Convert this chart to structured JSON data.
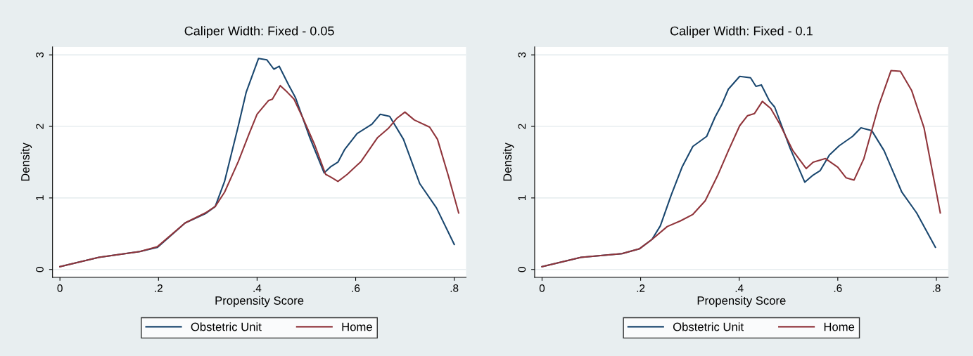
{
  "chart_data": [
    {
      "type": "line",
      "title": "Caliper Width: Fixed - 0.05",
      "xlabel": "Propensity Score",
      "ylabel": "Density",
      "xlim": [
        -0.015,
        0.824
      ],
      "ylim": [
        -0.11,
        3.11
      ],
      "xticks": [
        {
          "value": 0,
          "label": "0"
        },
        {
          "value": 0.2,
          "label": ".2"
        },
        {
          "value": 0.4,
          "label": ".4"
        },
        {
          "value": 0.6,
          "label": ".6"
        },
        {
          "value": 0.8,
          "label": ".8"
        }
      ],
      "yticks": [
        0,
        1,
        2,
        3
      ],
      "grid": "y",
      "legend": "bottom",
      "series": [
        {
          "name": "Obstetric Unit",
          "color": "#1a476f",
          "x": [
            0,
            0.079,
            0.162,
            0.198,
            0.254,
            0.295,
            0.315,
            0.334,
            0.362,
            0.378,
            0.403,
            0.42,
            0.434,
            0.445,
            0.464,
            0.478,
            0.506,
            0.536,
            0.55,
            0.564,
            0.578,
            0.603,
            0.633,
            0.65,
            0.669,
            0.697,
            0.73,
            0.764,
            0.8
          ],
          "values": [
            0.04,
            0.17,
            0.25,
            0.31,
            0.65,
            0.78,
            0.88,
            1.23,
            2.01,
            2.48,
            2.95,
            2.93,
            2.8,
            2.84,
            2.58,
            2.4,
            1.86,
            1.35,
            1.44,
            1.5,
            1.68,
            1.9,
            2.03,
            2.17,
            2.14,
            1.82,
            1.2,
            0.86,
            0.35
          ]
        },
        {
          "name": "Home",
          "color": "#90353b",
          "x": [
            0,
            0.079,
            0.162,
            0.198,
            0.254,
            0.295,
            0.315,
            0.334,
            0.362,
            0.384,
            0.4,
            0.423,
            0.431,
            0.447,
            0.461,
            0.475,
            0.492,
            0.517,
            0.539,
            0.55,
            0.564,
            0.583,
            0.611,
            0.644,
            0.666,
            0.683,
            0.7,
            0.719,
            0.75,
            0.766,
            0.788,
            0.809
          ],
          "values": [
            0.04,
            0.17,
            0.25,
            0.32,
            0.65,
            0.79,
            0.88,
            1.08,
            1.51,
            1.9,
            2.17,
            2.36,
            2.38,
            2.57,
            2.48,
            2.38,
            2.13,
            1.74,
            1.33,
            1.29,
            1.23,
            1.33,
            1.51,
            1.84,
            1.97,
            2.11,
            2.2,
            2.09,
            1.99,
            1.82,
            1.31,
            0.79
          ]
        }
      ]
    },
    {
      "type": "line",
      "title": "Caliper Width: Fixed - 0.1",
      "xlabel": "Propensity Score",
      "ylabel": "Density",
      "xlim": [
        -0.015,
        0.824
      ],
      "ylim": [
        -0.11,
        3.11
      ],
      "xticks": [
        {
          "value": 0,
          "label": "0"
        },
        {
          "value": 0.2,
          "label": ".2"
        },
        {
          "value": 0.4,
          "label": ".4"
        },
        {
          "value": 0.6,
          "label": ".6"
        },
        {
          "value": 0.8,
          "label": ".8"
        }
      ],
      "yticks": [
        0,
        1,
        2,
        3
      ],
      "grid": "y",
      "legend": "bottom",
      "series": [
        {
          "name": "Obstetric Unit",
          "color": "#1a476f",
          "x": [
            0,
            0.079,
            0.162,
            0.198,
            0.223,
            0.24,
            0.262,
            0.284,
            0.306,
            0.334,
            0.351,
            0.365,
            0.378,
            0.401,
            0.423,
            0.434,
            0.445,
            0.461,
            0.472,
            0.503,
            0.533,
            0.55,
            0.564,
            0.583,
            0.603,
            0.63,
            0.647,
            0.669,
            0.694,
            0.73,
            0.76,
            0.798
          ],
          "values": [
            0.04,
            0.17,
            0.22,
            0.29,
            0.42,
            0.61,
            1.04,
            1.43,
            1.72,
            1.86,
            2.13,
            2.31,
            2.52,
            2.7,
            2.68,
            2.56,
            2.58,
            2.36,
            2.27,
            1.7,
            1.22,
            1.32,
            1.38,
            1.6,
            1.73,
            1.86,
            1.98,
            1.94,
            1.66,
            1.08,
            0.79,
            0.31
          ]
        },
        {
          "name": "Home",
          "color": "#90353b",
          "x": [
            0,
            0.079,
            0.162,
            0.198,
            0.223,
            0.254,
            0.281,
            0.306,
            0.331,
            0.356,
            0.378,
            0.401,
            0.417,
            0.431,
            0.447,
            0.464,
            0.481,
            0.509,
            0.536,
            0.55,
            0.575,
            0.6,
            0.617,
            0.633,
            0.653,
            0.683,
            0.708,
            0.727,
            0.75,
            0.775,
            0.808
          ],
          "values": [
            0.04,
            0.17,
            0.22,
            0.29,
            0.42,
            0.6,
            0.68,
            0.77,
            0.96,
            1.31,
            1.66,
            2.01,
            2.15,
            2.18,
            2.35,
            2.25,
            2.05,
            1.66,
            1.41,
            1.5,
            1.55,
            1.43,
            1.28,
            1.25,
            1.55,
            2.29,
            2.78,
            2.77,
            2.5,
            1.98,
            0.79
          ]
        }
      ]
    }
  ]
}
